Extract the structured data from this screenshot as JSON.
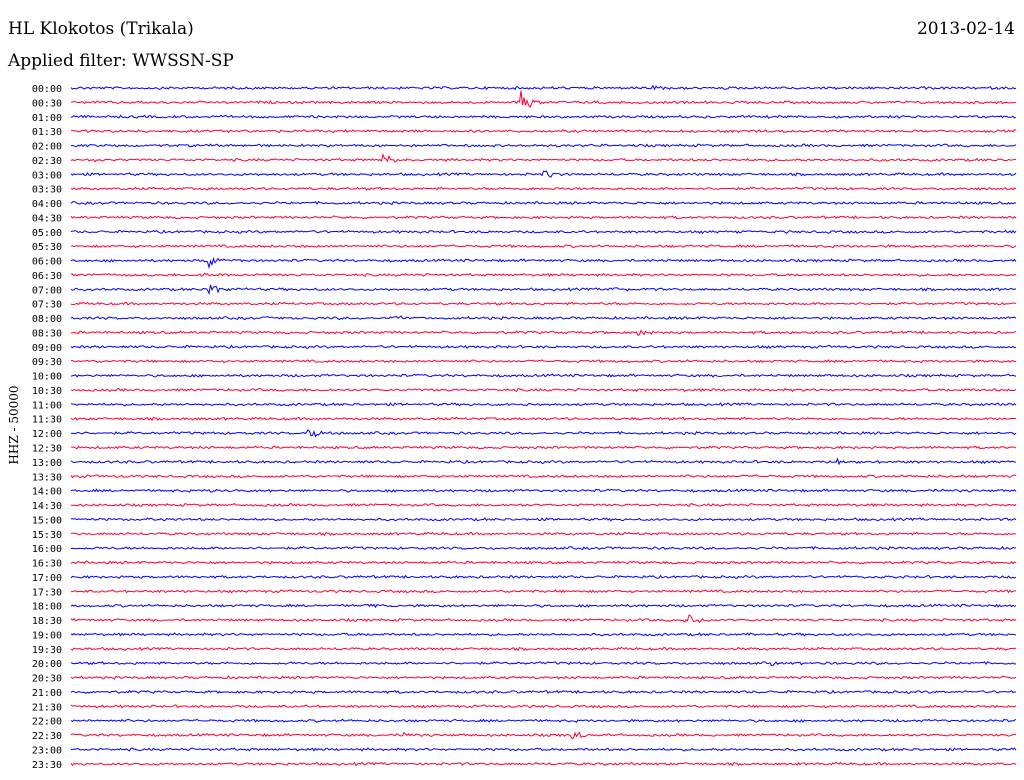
{
  "header": {
    "station": "HL Klokotos (Trikala)",
    "date": "2013-02-14",
    "filter": "Applied filter: WWSSN-SP"
  },
  "chart_data": {
    "type": "line",
    "subtype": "helicorder",
    "channel_label": "HHZ - 50000",
    "colors": {
      "blue": "#0000ff",
      "red": "#ff0033"
    },
    "rows": [
      {
        "time": "00:00",
        "color": "blue",
        "events": [
          [
            0.615,
            5
          ],
          [
            0.73,
            1.5
          ]
        ]
      },
      {
        "time": "00:30",
        "color": "red",
        "events": [
          [
            0.475,
            12
          ],
          [
            0.66,
            1
          ]
        ]
      },
      {
        "time": "01:00",
        "color": "blue",
        "events": []
      },
      {
        "time": "01:30",
        "color": "red",
        "events": [
          [
            0.7,
            2
          ]
        ]
      },
      {
        "time": "02:00",
        "color": "blue",
        "events": []
      },
      {
        "time": "02:30",
        "color": "red",
        "events": [
          [
            0.023,
            2
          ],
          [
            0.33,
            7
          ]
        ]
      },
      {
        "time": "03:00",
        "color": "blue",
        "events": [
          [
            0.5,
            7
          ]
        ]
      },
      {
        "time": "03:30",
        "color": "red",
        "events": [
          [
            0.49,
            1.5
          ]
        ]
      },
      {
        "time": "04:00",
        "color": "blue",
        "events": []
      },
      {
        "time": "04:30",
        "color": "red",
        "events": []
      },
      {
        "time": "05:00",
        "color": "blue",
        "events": [
          [
            0.71,
            1.5
          ]
        ]
      },
      {
        "time": "05:30",
        "color": "red",
        "events": []
      },
      {
        "time": "06:00",
        "color": "blue",
        "events": [
          [
            0.145,
            10
          ]
        ]
      },
      {
        "time": "06:30",
        "color": "red",
        "events": [
          [
            0.04,
            2
          ],
          [
            0.14,
            2
          ]
        ]
      },
      {
        "time": "07:00",
        "color": "blue",
        "events": [
          [
            0.145,
            10
          ],
          [
            0.57,
            4
          ]
        ]
      },
      {
        "time": "07:30",
        "color": "red",
        "events": []
      },
      {
        "time": "08:00",
        "color": "blue",
        "events": [
          [
            0.21,
            2
          ],
          [
            0.34,
            5
          ]
        ]
      },
      {
        "time": "08:30",
        "color": "red",
        "events": [
          [
            0.6,
            4
          ],
          [
            0.76,
            3
          ]
        ]
      },
      {
        "time": "09:00",
        "color": "blue",
        "events": []
      },
      {
        "time": "09:30",
        "color": "red",
        "events": []
      },
      {
        "time": "10:00",
        "color": "blue",
        "events": []
      },
      {
        "time": "10:30",
        "color": "red",
        "events": []
      },
      {
        "time": "11:00",
        "color": "blue",
        "events": [
          [
            0.45,
            1.5
          ]
        ]
      },
      {
        "time": "11:30",
        "color": "red",
        "events": []
      },
      {
        "time": "12:00",
        "color": "blue",
        "events": [
          [
            0.25,
            9
          ]
        ]
      },
      {
        "time": "12:30",
        "color": "red",
        "events": []
      },
      {
        "time": "13:00",
        "color": "blue",
        "events": [
          [
            0.81,
            3
          ]
        ]
      },
      {
        "time": "13:30",
        "color": "red",
        "events": []
      },
      {
        "time": "14:00",
        "color": "blue",
        "events": [
          [
            0.145,
            3
          ],
          [
            0.92,
            2
          ]
        ]
      },
      {
        "time": "14:30",
        "color": "red",
        "events": []
      },
      {
        "time": "15:00",
        "color": "blue",
        "events": [
          [
            0.08,
            2
          ]
        ]
      },
      {
        "time": "15:30",
        "color": "red",
        "events": []
      },
      {
        "time": "16:00",
        "color": "blue",
        "events": []
      },
      {
        "time": "16:30",
        "color": "red",
        "events": []
      },
      {
        "time": "17:00",
        "color": "blue",
        "events": [
          [
            0.83,
            3
          ]
        ]
      },
      {
        "time": "17:30",
        "color": "red",
        "events": []
      },
      {
        "time": "18:00",
        "color": "blue",
        "events": [
          [
            0.31,
            4
          ]
        ]
      },
      {
        "time": "18:30",
        "color": "red",
        "events": [
          [
            0.65,
            8
          ]
        ]
      },
      {
        "time": "19:00",
        "color": "blue",
        "events": [
          [
            0.7,
            2
          ]
        ]
      },
      {
        "time": "19:30",
        "color": "red",
        "events": []
      },
      {
        "time": "20:00",
        "color": "blue",
        "events": [
          [
            0.74,
            3
          ]
        ]
      },
      {
        "time": "20:30",
        "color": "red",
        "events": []
      },
      {
        "time": "21:00",
        "color": "blue",
        "events": []
      },
      {
        "time": "21:30",
        "color": "red",
        "events": []
      },
      {
        "time": "22:00",
        "color": "blue",
        "events": []
      },
      {
        "time": "22:30",
        "color": "red",
        "events": [
          [
            0.35,
            4
          ],
          [
            0.53,
            8
          ]
        ]
      },
      {
        "time": "23:00",
        "color": "blue",
        "events": []
      },
      {
        "time": "23:30",
        "color": "red",
        "events": []
      }
    ]
  }
}
